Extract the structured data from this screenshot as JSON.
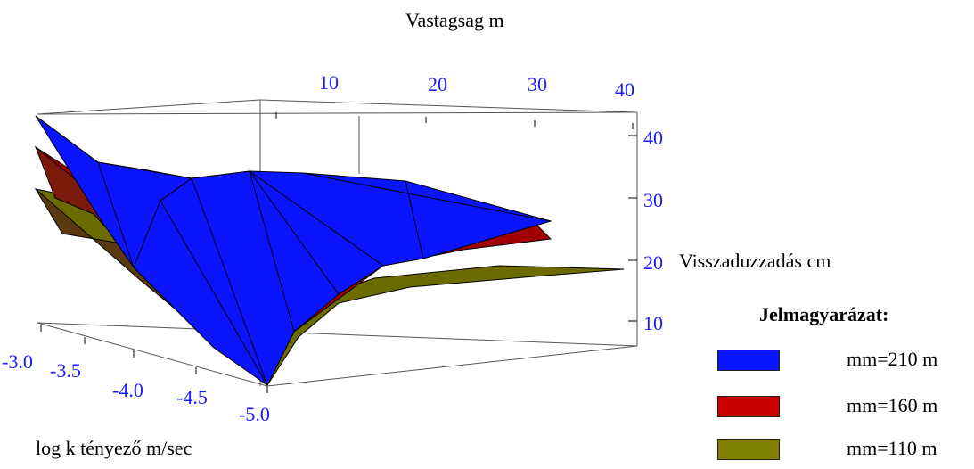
{
  "chart_data": {
    "type": "surface3d",
    "title": "",
    "xlabel": "log k tényező m/sec",
    "ylabel": "Vastagsag m",
    "zlabel": "Visszaduzzadás cm",
    "x_ticks": [
      "-3.0",
      "-3.5",
      "-4.0",
      "-4.5",
      "-5.0"
    ],
    "y_ticks": [
      "10",
      "20",
      "30",
      "40"
    ],
    "z_ticks": [
      "10",
      "20",
      "30",
      "40"
    ],
    "x_range": [
      -5.0,
      -3.0
    ],
    "y_range": [
      0,
      40
    ],
    "z_range": [
      5,
      45
    ],
    "legend_title": "Jelmagyarázat:",
    "series": [
      {
        "name": "mm=210 m",
        "color": "#0a14ff"
      },
      {
        "name": "mm=160 m",
        "color": "#c80000"
      },
      {
        "name": "mm=110 m",
        "color": "#808000"
      }
    ]
  }
}
